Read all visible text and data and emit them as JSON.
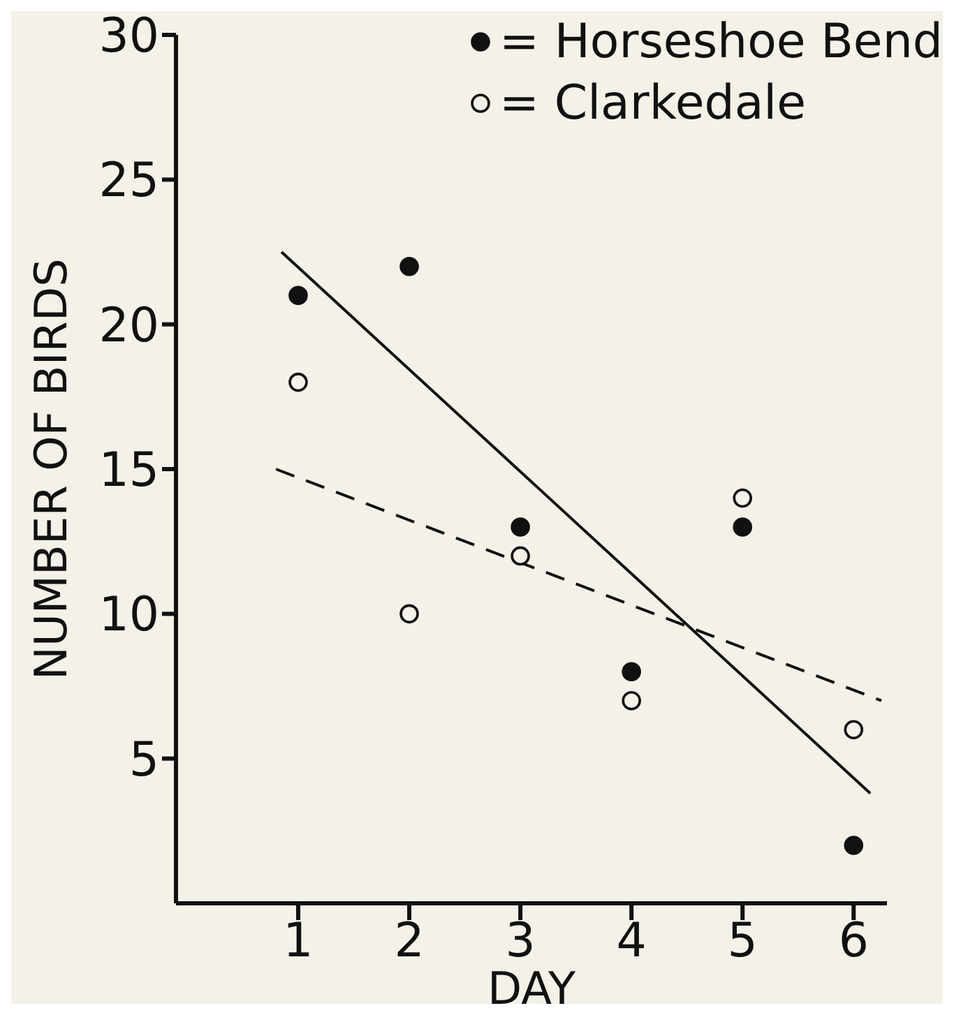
{
  "chart_data": {
    "type": "scatter",
    "xlabel": "DAY",
    "ylabel": "NUMBER OF BIRDS",
    "xlim": [
      -0.1,
      6.3
    ],
    "xticks": [
      1,
      2,
      3,
      4,
      5,
      6
    ],
    "ylim": [
      0,
      30
    ],
    "yticks": [
      5,
      10,
      15,
      20,
      25,
      30
    ],
    "x": [
      1,
      2,
      3,
      4,
      5,
      6
    ],
    "legend": "top right",
    "series": [
      {
        "name": "= Horseshoe Bend",
        "color": "#111111",
        "marker": "circle",
        "values": [
          21,
          22,
          13,
          8,
          13,
          2
        ]
      },
      {
        "name": "= Clarkedale",
        "color": "#f3f1e8",
        "marker": "circle",
        "values": [
          18,
          10,
          12,
          7,
          14,
          6
        ]
      },
      {
        "type": "line",
        "color": "#111111",
        "line_style": "solid",
        "marker": "none",
        "x": [
          0.85,
          6.15
        ],
        "values": [
          22.5,
          3.8
        ]
      },
      {
        "type": "line",
        "color": "#111111",
        "line_style": "dashed",
        "marker": "none",
        "x": [
          0.8,
          6.25
        ],
        "values": [
          15.0,
          7.0
        ]
      }
    ]
  }
}
